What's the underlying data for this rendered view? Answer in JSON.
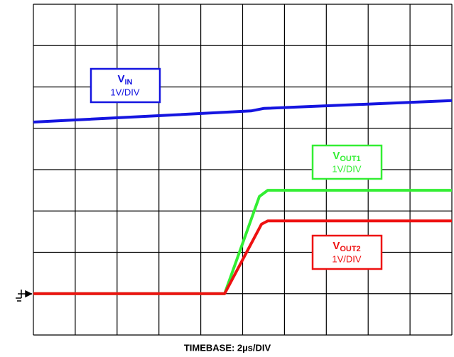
{
  "chart_data": {
    "type": "line",
    "title": "TIMEBASE: 2µs/DIV",
    "xlim": [
      0,
      10
    ],
    "ylim": [
      0,
      8
    ],
    "xticks": [
      0,
      1,
      2,
      3,
      4,
      5,
      6,
      7,
      8,
      9,
      10
    ],
    "yticks": [
      0,
      1,
      2,
      3,
      4,
      5,
      6,
      7,
      8
    ],
    "grid": true,
    "series": [
      {
        "name": "V",
        "subscript": "IN",
        "scale": "1V/DIV",
        "color": "#1515e0",
        "x": [
          0,
          5.2,
          5.5,
          10
        ],
        "values": [
          5.15,
          5.42,
          5.48,
          5.67
        ]
      },
      {
        "name": "V",
        "subscript": "OUT1",
        "scale": "1V/DIV",
        "color": "#33ee33",
        "x": [
          0,
          4.57,
          5.4,
          5.6,
          10
        ],
        "values": [
          1,
          1,
          3.35,
          3.5,
          3.5
        ]
      },
      {
        "name": "V",
        "subscript": "OUT2",
        "scale": "1V/DIV",
        "color": "#ee1111",
        "x": [
          0,
          4.57,
          5.45,
          5.6,
          10
        ],
        "values": [
          1,
          1,
          2.68,
          2.76,
          2.76
        ]
      }
    ]
  }
}
